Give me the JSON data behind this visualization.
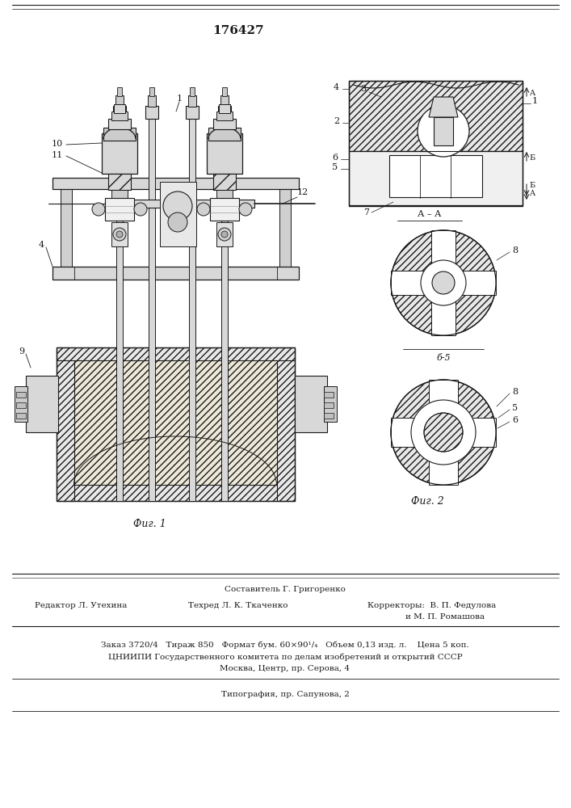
{
  "patent_number": "176427",
  "fig1_caption": "Фиг. 1",
  "fig2_caption": "Фиг. 2",
  "footer_sestavitel": "Составитель Г. Григоренко",
  "footer_redaktor": "Редактор Л. Утехина",
  "footer_tehred": "Техред Л. К. Ткаченко",
  "footer_korrektory": "Корректоры:  В. П. Федулова",
  "footer_korrektory2": "и М. П. Ромашова",
  "footer_zakaz": "Заказ 3720/4   Тираж 850   Формат бум. 60×90¹/₄   Объем 0,13 изд. л.    Цена 5 коп.",
  "footer_tsniipи": "ЦНИИПИ Государственного комитета по делам изобретений и открытий СССР",
  "footer_moskva": "Москва, Центр, пр. Серова, 4",
  "footer_tipografiya": "Типография, пр. Сапунова, 2",
  "bg_color": "#ffffff",
  "lc": "#1a1a1a",
  "hatch_fc": "#e8e8e8",
  "gray_fc": "#d8d8d8",
  "light_fc": "#f0f0f0"
}
